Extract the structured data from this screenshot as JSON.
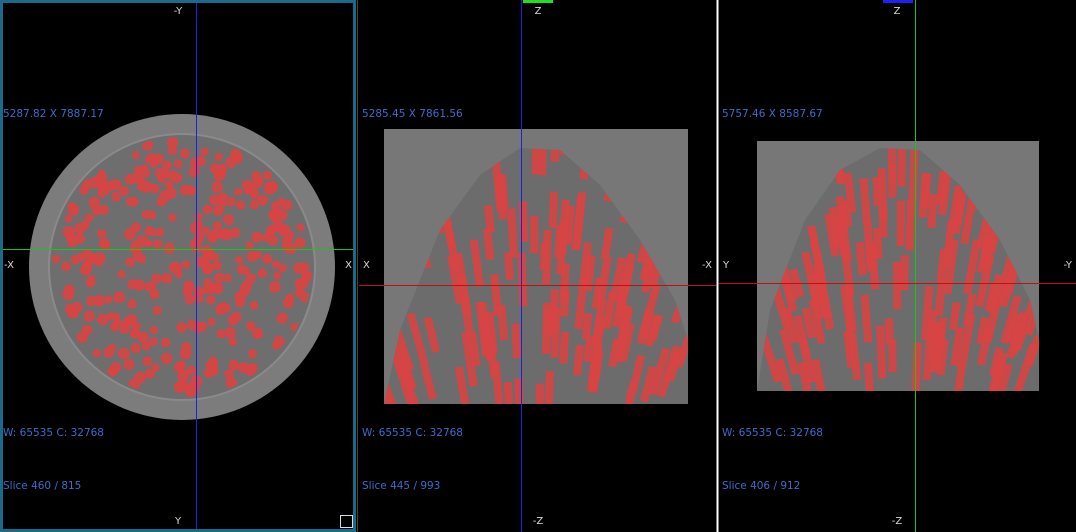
{
  "panes": [
    {
      "top": "-Y",
      "left": "-X",
      "right": "X",
      "bottom": "Y",
      "size": "5287.82 X 7887.17",
      "window": "W: 65535 C: 32768",
      "slice": "Slice 460 / 815"
    },
    {
      "top": "Z",
      "left": "X",
      "right": "-X",
      "bottom": "-Z",
      "size": "5285.45 X 7861.56",
      "window": "W: 65535 C: 32768",
      "slice": "Slice 445 / 993"
    },
    {
      "top": "Z",
      "left": "Y",
      "right": "-Y",
      "bottom": "-Z",
      "size": "5757.46 X 8587.67",
      "window": "W: 65535 C: 32768",
      "slice": "Slice 406 / 912"
    }
  ]
}
